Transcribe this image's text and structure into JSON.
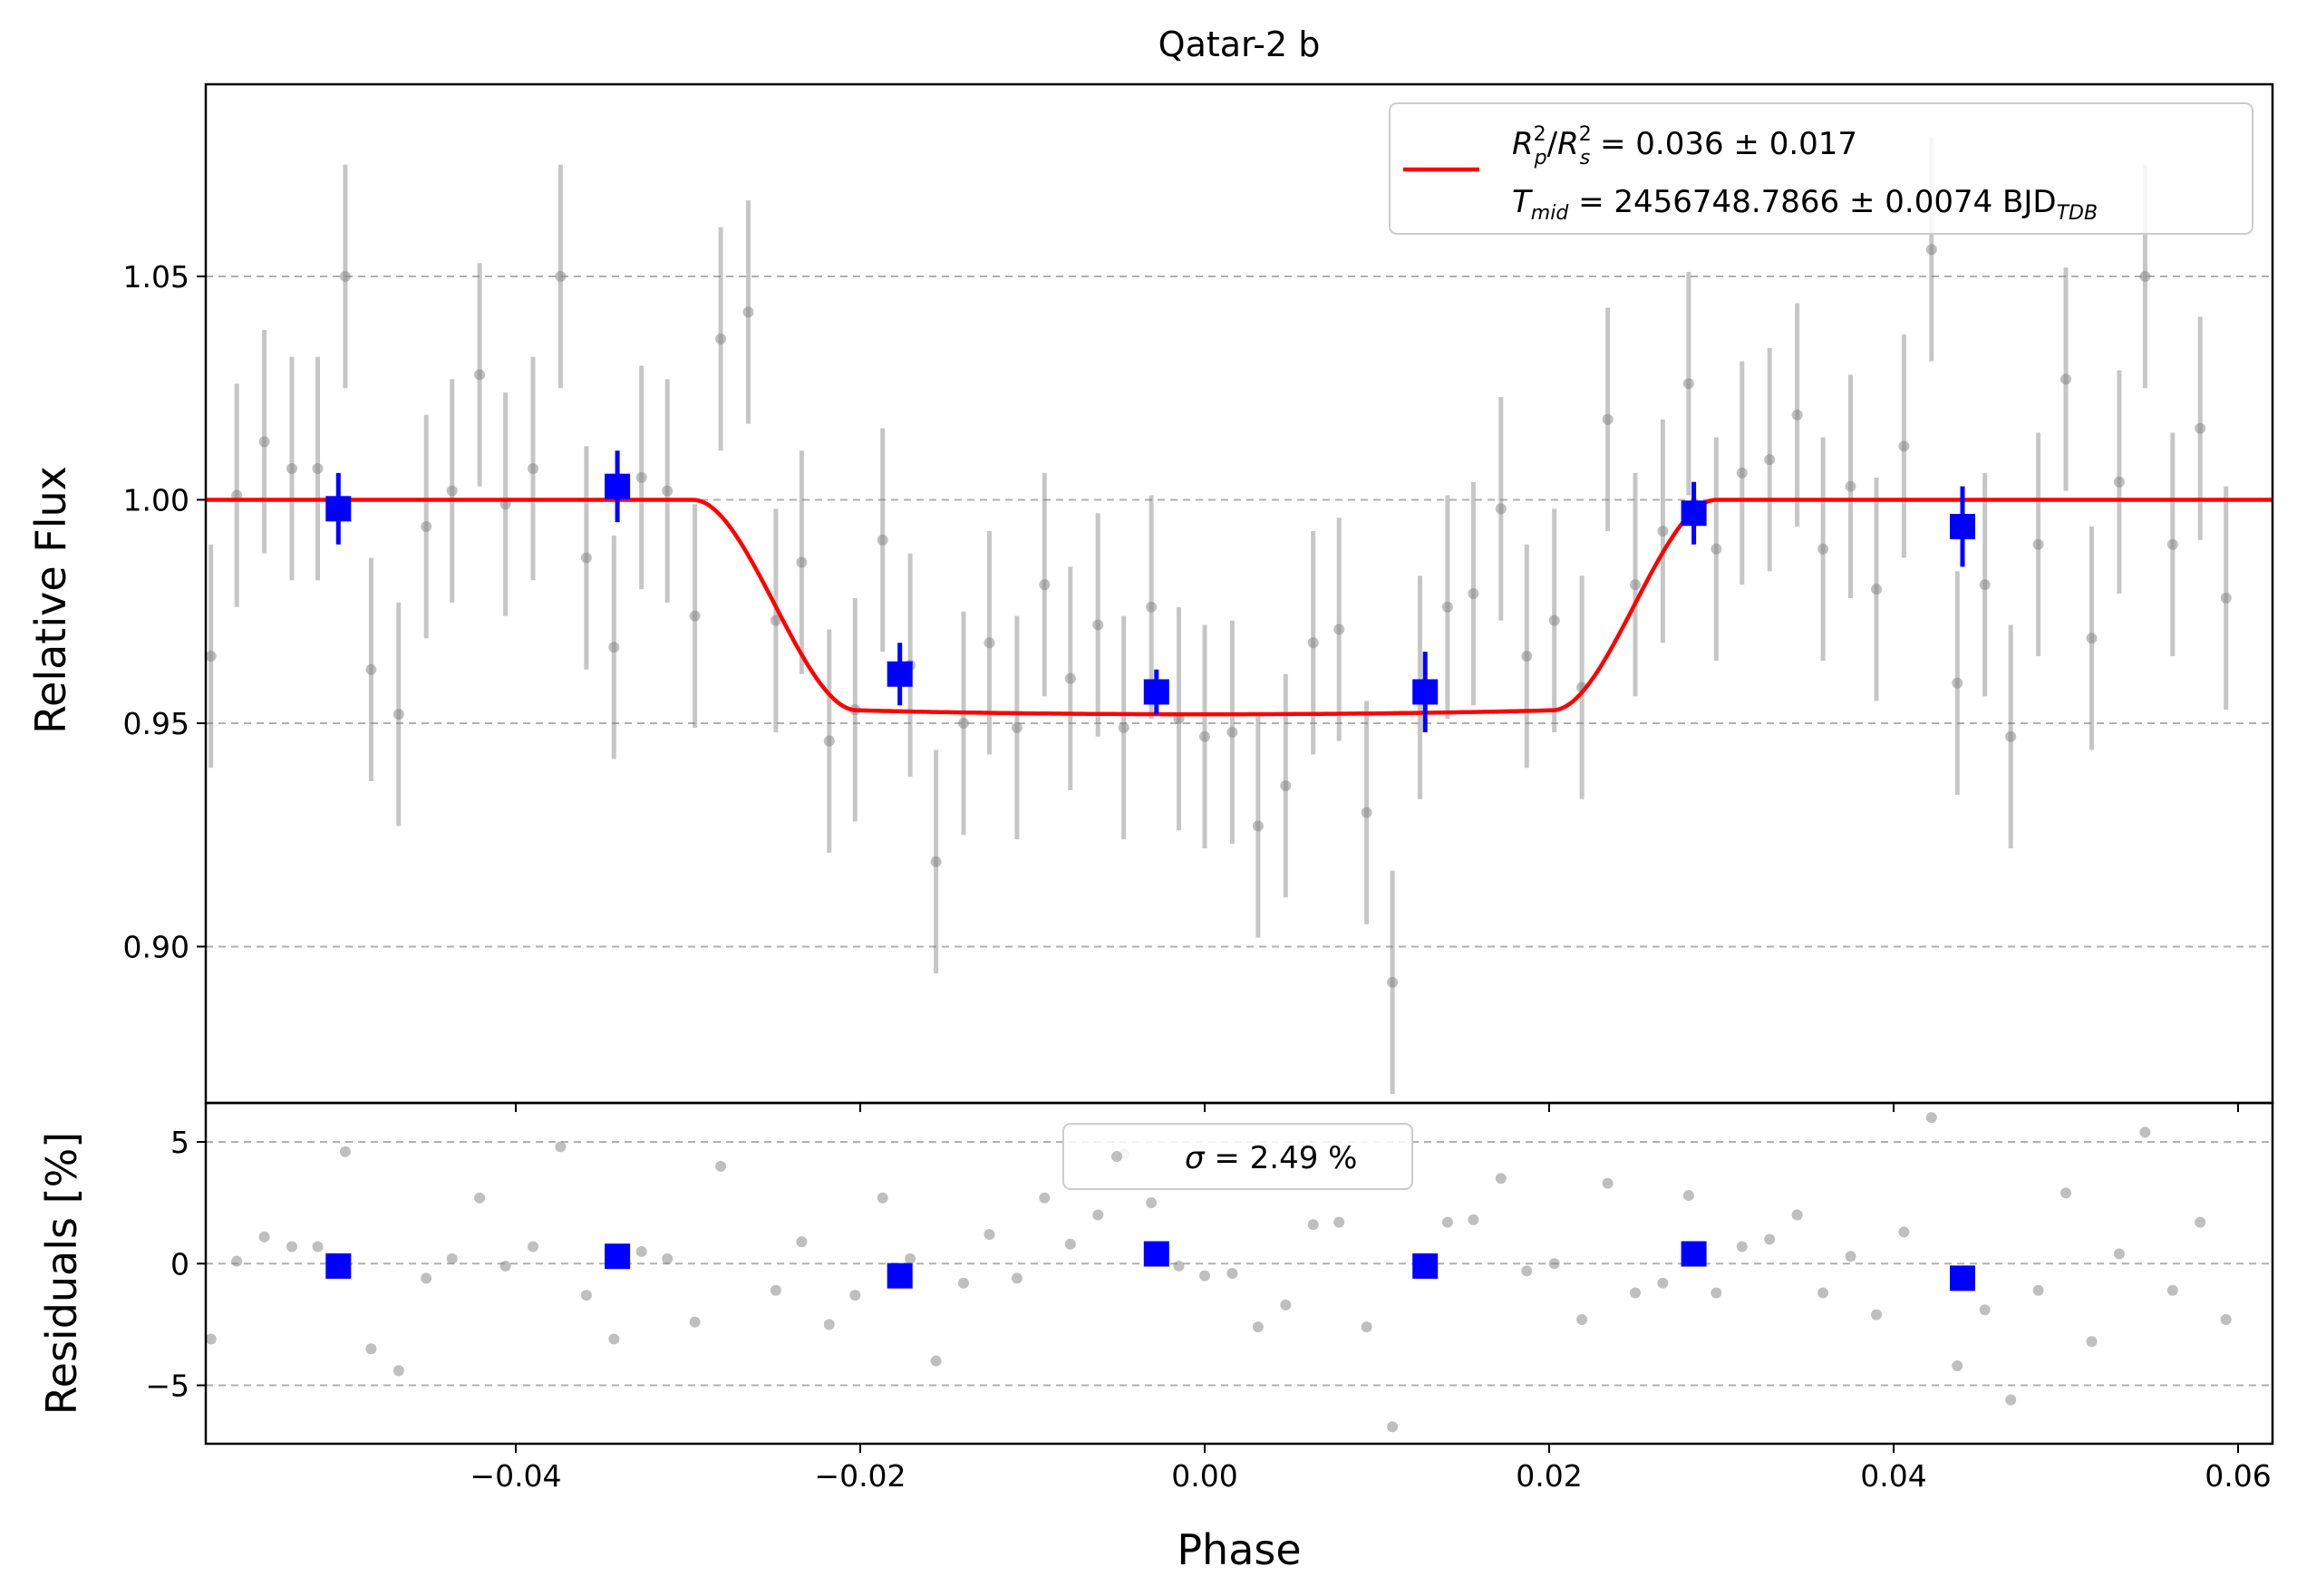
{
  "chart_data": [
    {
      "type": "scatter",
      "title": "Qatar-2 b",
      "xlabel": "",
      "ylabel": "Relative Flux",
      "xlim": [
        -0.058,
        0.062
      ],
      "ylim": [
        0.865,
        1.093
      ],
      "grid": "horizontal dashed",
      "legend_placement": "top-right",
      "xticks": [
        -0.04,
        -0.02,
        0.0,
        0.02,
        0.04,
        0.06
      ],
      "yticks": [
        0.9,
        0.95,
        1.0,
        1.05
      ],
      "ytick_labels": [
        "0.90",
        "0.95",
        "1.00",
        "1.05"
      ],
      "legend": {
        "line1": {
          "lhs": "R",
          "sub_p": "p",
          "sup": "2",
          "sub_s": "s",
          "rhs": " = 0.036 ± 0.017"
        },
        "line2": {
          "lhs": "T",
          "sub": "mid",
          "rhs": " = 2456748.7866 ± 0.0074 BJD",
          "unit_sub": "TDB"
        }
      },
      "series": [
        {
          "kind": "raw",
          "color": "#808080",
          "yerr": 0.025,
          "points": [
            [
              -0.0577,
              0.965
            ],
            [
              -0.0562,
              1.001
            ],
            [
              -0.0546,
              1.013
            ],
            [
              -0.053,
              1.007
            ],
            [
              -0.0515,
              1.007
            ],
            [
              -0.0499,
              1.05
            ],
            [
              -0.0484,
              0.962
            ],
            [
              -0.0468,
              0.952
            ],
            [
              -0.0452,
              0.994
            ],
            [
              -0.0437,
              1.002
            ],
            [
              -0.0421,
              1.028
            ],
            [
              -0.0406,
              0.999
            ],
            [
              -0.039,
              1.007
            ],
            [
              -0.0374,
              1.05
            ],
            [
              -0.0359,
              0.987
            ],
            [
              -0.0343,
              0.967
            ],
            [
              -0.0327,
              1.005
            ],
            [
              -0.0312,
              1.002
            ],
            [
              -0.0296,
              0.974
            ],
            [
              -0.0281,
              1.036
            ],
            [
              -0.0265,
              1.042
            ],
            [
              -0.0249,
              0.973
            ],
            [
              -0.0234,
              0.986
            ],
            [
              -0.0218,
              0.946
            ],
            [
              -0.0203,
              0.953
            ],
            [
              -0.0187,
              0.991
            ],
            [
              -0.0171,
              0.963
            ],
            [
              -0.0156,
              0.919
            ],
            [
              -0.014,
              0.95
            ],
            [
              -0.0125,
              0.968
            ],
            [
              -0.0109,
              0.949
            ],
            [
              -0.0093,
              0.981
            ],
            [
              -0.0078,
              0.96
            ],
            [
              -0.0062,
              0.972
            ],
            [
              -0.0047,
              0.949
            ],
            [
              -0.0031,
              0.976
            ],
            [
              -0.0015,
              0.951
            ],
            [
              0.0,
              0.947
            ],
            [
              0.0016,
              0.948
            ],
            [
              0.0031,
              0.927
            ],
            [
              0.0047,
              0.936
            ],
            [
              0.0063,
              0.968
            ],
            [
              0.0078,
              0.971
            ],
            [
              0.0094,
              0.93
            ],
            [
              0.0109,
              0.892
            ],
            [
              0.0125,
              0.958
            ],
            [
              0.0141,
              0.976
            ],
            [
              0.0156,
              0.979
            ],
            [
              0.0172,
              0.998
            ],
            [
              0.0187,
              0.965
            ],
            [
              0.0203,
              0.973
            ],
            [
              0.0219,
              0.958
            ],
            [
              0.0234,
              1.018
            ],
            [
              0.025,
              0.981
            ],
            [
              0.0266,
              0.993
            ],
            [
              0.0281,
              1.026
            ],
            [
              0.0297,
              0.989
            ],
            [
              0.0312,
              1.006
            ],
            [
              0.0328,
              1.009
            ],
            [
              0.0344,
              1.019
            ],
            [
              0.0359,
              0.989
            ],
            [
              0.0375,
              1.003
            ],
            [
              0.039,
              0.98
            ],
            [
              0.0406,
              1.012
            ],
            [
              0.0422,
              1.056
            ],
            [
              0.0437,
              0.959
            ],
            [
              0.0453,
              0.981
            ],
            [
              0.0468,
              0.947
            ],
            [
              0.0484,
              0.99
            ],
            [
              0.05,
              1.027
            ],
            [
              0.0515,
              0.969
            ],
            [
              0.0531,
              1.004
            ],
            [
              0.0546,
              1.05
            ],
            [
              0.0562,
              0.99
            ],
            [
              0.0578,
              1.016
            ],
            [
              0.0593,
              0.978
            ]
          ]
        },
        {
          "kind": "binned",
          "color": "#0000ff",
          "points": [
            [
              -0.0503,
              0.998,
              0.008
            ],
            [
              -0.0341,
              1.003,
              0.008
            ],
            [
              -0.0177,
              0.961,
              0.007
            ],
            [
              -0.0028,
              0.957,
              0.005
            ],
            [
              0.0128,
              0.957,
              0.009
            ],
            [
              0.0284,
              0.997,
              0.007
            ],
            [
              0.044,
              0.994,
              0.009
            ]
          ]
        },
        {
          "kind": "model",
          "color": "#ff0000",
          "depth": 0.048,
          "ingress_start": 0.0297,
          "ingress_end": 0.0202
        }
      ]
    },
    {
      "type": "scatter",
      "title": "",
      "xlabel": "Phase",
      "ylabel": "Residuals [%]",
      "xlim": [
        -0.058,
        0.062
      ],
      "ylim": [
        -7.4,
        6.6
      ],
      "grid": "horizontal dashed",
      "legend_placement": "top-center",
      "xticks": [
        -0.04,
        -0.02,
        0.0,
        0.02,
        0.04,
        0.06
      ],
      "xtick_labels": [
        "−0.04",
        "−0.02",
        "0.00",
        "0.02",
        "0.04",
        "0.06"
      ],
      "yticks": [
        -5,
        0,
        5
      ],
      "ytick_labels": [
        "−5",
        "0",
        "5"
      ],
      "legend": {
        "symbol": "σ",
        "text": " = 2.49 %"
      },
      "series": [
        {
          "kind": "raw",
          "color": "#808080",
          "points": [
            [
              -0.0577,
              -3.1
            ],
            [
              -0.0562,
              0.1
            ],
            [
              -0.0546,
              1.1
            ],
            [
              -0.053,
              0.7
            ],
            [
              -0.0515,
              0.7
            ],
            [
              -0.0499,
              4.6
            ],
            [
              -0.0484,
              -3.5
            ],
            [
              -0.0468,
              -4.4
            ],
            [
              -0.0452,
              -0.6
            ],
            [
              -0.0437,
              0.2
            ],
            [
              -0.0421,
              2.7
            ],
            [
              -0.0406,
              -0.1
            ],
            [
              -0.039,
              0.7
            ],
            [
              -0.0374,
              4.8
            ],
            [
              -0.0359,
              -1.3
            ],
            [
              -0.0343,
              -3.1
            ],
            [
              -0.0327,
              0.5
            ],
            [
              -0.0312,
              0.2
            ],
            [
              -0.0296,
              -2.4
            ],
            [
              -0.0281,
              4.0
            ],
            [
              -0.0249,
              -1.1
            ],
            [
              -0.0234,
              0.9
            ],
            [
              -0.0218,
              -2.5
            ],
            [
              -0.0203,
              -1.3
            ],
            [
              -0.0187,
              2.7
            ],
            [
              -0.0171,
              0.2
            ],
            [
              -0.0156,
              -4.0
            ],
            [
              -0.014,
              -0.8
            ],
            [
              -0.0125,
              1.2
            ],
            [
              -0.0109,
              -0.6
            ],
            [
              -0.0093,
              2.7
            ],
            [
              -0.0078,
              0.8
            ],
            [
              -0.0062,
              2.0
            ],
            [
              -0.0047,
              4.5
            ],
            [
              -0.0031,
              2.5
            ],
            [
              -0.0015,
              -0.1
            ],
            [
              0.0,
              -0.5
            ],
            [
              0.0016,
              -0.4
            ],
            [
              0.0031,
              -2.6
            ],
            [
              0.0047,
              -1.7
            ],
            [
              0.0063,
              1.6
            ],
            [
              0.0078,
              1.7
            ],
            [
              0.0094,
              -2.6
            ],
            [
              0.0109,
              -6.7
            ],
            [
              0.0125,
              -0.1
            ],
            [
              0.0141,
              1.7
            ],
            [
              0.0156,
              1.8
            ],
            [
              0.0172,
              3.5
            ],
            [
              0.0187,
              -0.3
            ],
            [
              0.0203,
              0.0
            ],
            [
              0.0219,
              -2.3
            ],
            [
              0.0234,
              3.3
            ],
            [
              0.025,
              -1.2
            ],
            [
              0.0266,
              -0.8
            ],
            [
              0.0281,
              2.8
            ],
            [
              0.0297,
              -1.2
            ],
            [
              0.0312,
              0.7
            ],
            [
              0.0328,
              1.0
            ],
            [
              0.0344,
              2.0
            ],
            [
              0.0359,
              -1.2
            ],
            [
              0.0375,
              0.3
            ],
            [
              0.039,
              -2.1
            ],
            [
              0.0406,
              1.3
            ],
            [
              0.0422,
              6.0
            ],
            [
              0.0437,
              -4.2
            ],
            [
              0.0453,
              -1.9
            ],
            [
              0.0468,
              -5.6
            ],
            [
              0.0484,
              -1.1
            ],
            [
              0.05,
              2.9
            ],
            [
              0.0515,
              -3.2
            ],
            [
              0.0531,
              0.4
            ],
            [
              0.0546,
              5.4
            ],
            [
              0.0562,
              -1.1
            ],
            [
              0.0578,
              1.7
            ],
            [
              0.0593,
              -2.3
            ]
          ]
        },
        {
          "kind": "binned",
          "color": "#0000ff",
          "points": [
            [
              -0.0503,
              -0.1
            ],
            [
              -0.0341,
              0.3
            ],
            [
              -0.0177,
              -0.5
            ],
            [
              -0.0028,
              0.4
            ],
            [
              0.0128,
              -0.1
            ],
            [
              0.0284,
              0.4
            ],
            [
              0.044,
              -0.6
            ]
          ]
        }
      ]
    }
  ]
}
